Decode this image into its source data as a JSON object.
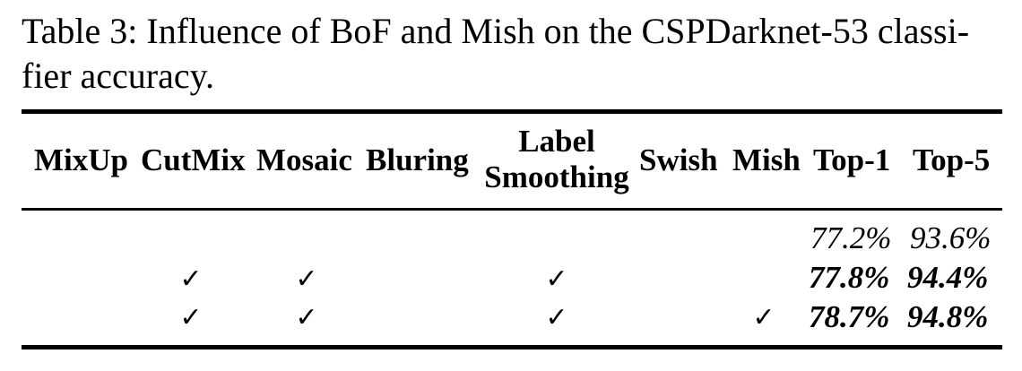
{
  "caption": "Table 3: Influence of BoF and Mish on the CSPDarknet-53 classi-fier accuracy.",
  "caption_line1": "Table 3: Influence of BoF and Mish on the CSPDarknet-53 classi-",
  "caption_line2": "fier accuracy.",
  "table": {
    "headers": {
      "mixup": "MixUp",
      "cutmix": "CutMix",
      "mosaic": "Mosaic",
      "bluring": "Bluring",
      "label_smoothing_line1": "Label",
      "label_smoothing_line2": "Smoothing",
      "swish": "Swish",
      "mish": "Mish",
      "top1": "Top-1",
      "top5": "Top-5"
    },
    "check_mark": "✓",
    "rows": [
      {
        "mixup": "",
        "cutmix": "",
        "mosaic": "",
        "bluring": "",
        "label_smoothing": "",
        "swish": "",
        "mish": "",
        "top1": "77.2%",
        "top5": "93.6%",
        "bold": false
      },
      {
        "mixup": "",
        "cutmix": "✓",
        "mosaic": "✓",
        "bluring": "",
        "label_smoothing": "✓",
        "swish": "",
        "mish": "",
        "top1": "77.8%",
        "top5": "94.4%",
        "bold": true
      },
      {
        "mixup": "",
        "cutmix": "✓",
        "mosaic": "✓",
        "bluring": "",
        "label_smoothing": "✓",
        "swish": "",
        "mish": "✓",
        "top1": "78.7%",
        "top5": "94.8%",
        "bold": true
      }
    ]
  }
}
